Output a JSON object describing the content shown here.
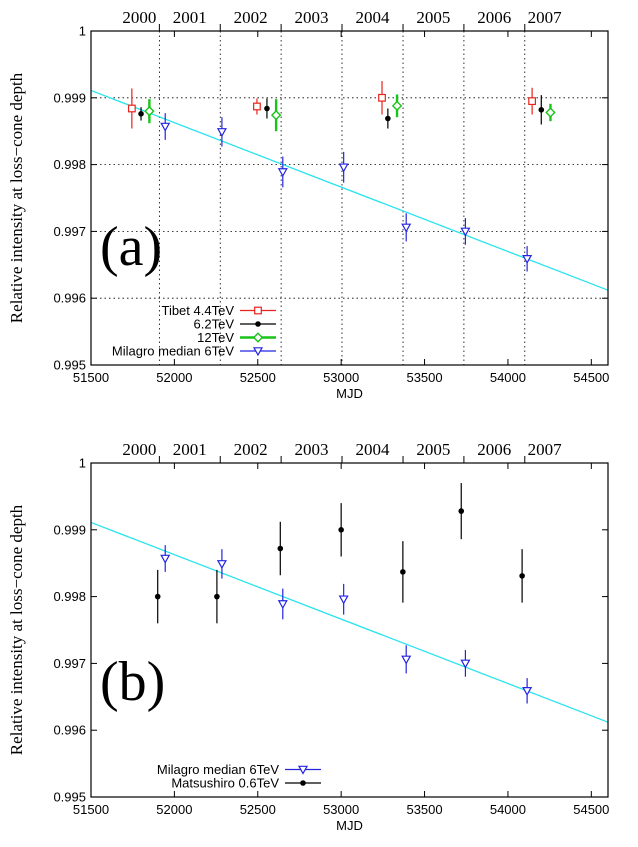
{
  "chart_data": [
    {
      "panel_label": "(a)",
      "type": "scatter",
      "xlabel": "MJD",
      "ylabel": "Relative intensity at loss−cone depth",
      "xlim": [
        51500,
        54600
      ],
      "ylim": [
        0.995,
        1.0
      ],
      "xticks": [
        "51500",
        "52000",
        "52500",
        "53000",
        "53500",
        "54000",
        "54500"
      ],
      "yticks": [
        "0.995",
        "0.996",
        "0.997",
        "0.998",
        "0.999",
        "1"
      ],
      "top_year_labels": [
        "2000",
        "2001",
        "2002",
        "2003",
        "2004",
        "2005",
        "2006",
        "2007"
      ],
      "grid": "dotted vertical year lines and horizontal lines",
      "legend_position": "bottom-left",
      "fit_line": {
        "color": "#29e3ee",
        "x": [
          51500,
          54600
        ],
        "y": [
          0.99911,
          0.99612
        ]
      },
      "series": [
        {
          "name": "Tibet 4.4TeV",
          "color": "#e8221c",
          "marker": "open-square",
          "x": [
            51745,
            52495,
            53245,
            54145
          ],
          "y": [
            0.99884,
            0.99887,
            0.999,
            0.99895
          ],
          "err": [
            0.0003,
            0.00012,
            0.00025,
            0.0002
          ]
        },
        {
          "name": "6.2TeV",
          "color": "#000000",
          "marker": "filled-circle",
          "x": [
            51800,
            52555,
            53280,
            54200
          ],
          "y": [
            0.99876,
            0.99884,
            0.99869,
            0.99882
          ],
          "err": [
            0.0001,
            0.00015,
            0.00015,
            0.00022
          ]
        },
        {
          "name": "12TeV",
          "color": "#18c418",
          "marker": "open-diamond",
          "x": [
            51850,
            52610,
            53335,
            54255
          ],
          "y": [
            0.9988,
            0.99874,
            0.99888,
            0.99878
          ],
          "err": [
            0.00018,
            0.00024,
            0.00017,
            0.00013
          ]
        },
        {
          "name": "Milagro median 6TeV",
          "color": "#2424e0",
          "marker": "open-triangle-down",
          "x": [
            51945,
            52285,
            52650,
            53015,
            53390,
            53745,
            54115
          ],
          "y": [
            0.99857,
            0.99849,
            0.99789,
            0.99796,
            0.99706,
            0.997,
            0.99659
          ],
          "err": [
            0.0002,
            0.00022,
            0.00023,
            0.00023,
            0.00021,
            0.0002,
            0.00019
          ]
        }
      ]
    },
    {
      "panel_label": "(b)",
      "type": "scatter",
      "xlabel": "MJD",
      "ylabel": "Relative intensity at loss−cone depth",
      "xlim": [
        51500,
        54600
      ],
      "ylim": [
        0.995,
        1.0
      ],
      "xticks": [
        "51500",
        "52000",
        "52500",
        "53000",
        "53500",
        "54000",
        "54500"
      ],
      "yticks": [
        "0.995",
        "0.996",
        "0.997",
        "0.998",
        "0.999",
        "1"
      ],
      "top_year_labels": [
        "2000",
        "2001",
        "2002",
        "2003",
        "2004",
        "2005",
        "2006",
        "2007"
      ],
      "grid": "none",
      "legend_position": "bottom-left",
      "fit_line": {
        "color": "#29e3ee",
        "x": [
          51500,
          54600
        ],
        "y": [
          0.99911,
          0.99612
        ]
      },
      "series": [
        {
          "name": "Milagro median 6TeV",
          "color": "#2424e0",
          "marker": "open-triangle-down",
          "x": [
            51945,
            52285,
            52650,
            53015,
            53390,
            53745,
            54115
          ],
          "y": [
            0.99857,
            0.99849,
            0.99789,
            0.99796,
            0.99706,
            0.997,
            0.99659
          ],
          "err": [
            0.0002,
            0.00022,
            0.00023,
            0.00023,
            0.00021,
            0.0002,
            0.00019
          ]
        },
        {
          "name": "Matsushiro 0.6TeV",
          "color": "#000000",
          "marker": "filled-circle",
          "x": [
            51900,
            52255,
            52635,
            53000,
            53370,
            53720,
            54085
          ],
          "y": [
            0.998,
            0.998,
            0.99872,
            0.999,
            0.99837,
            0.99928,
            0.99831
          ],
          "err": [
            0.0004,
            0.0004,
            0.0004,
            0.0004,
            0.00046,
            0.00042,
            0.0004
          ]
        }
      ]
    }
  ]
}
